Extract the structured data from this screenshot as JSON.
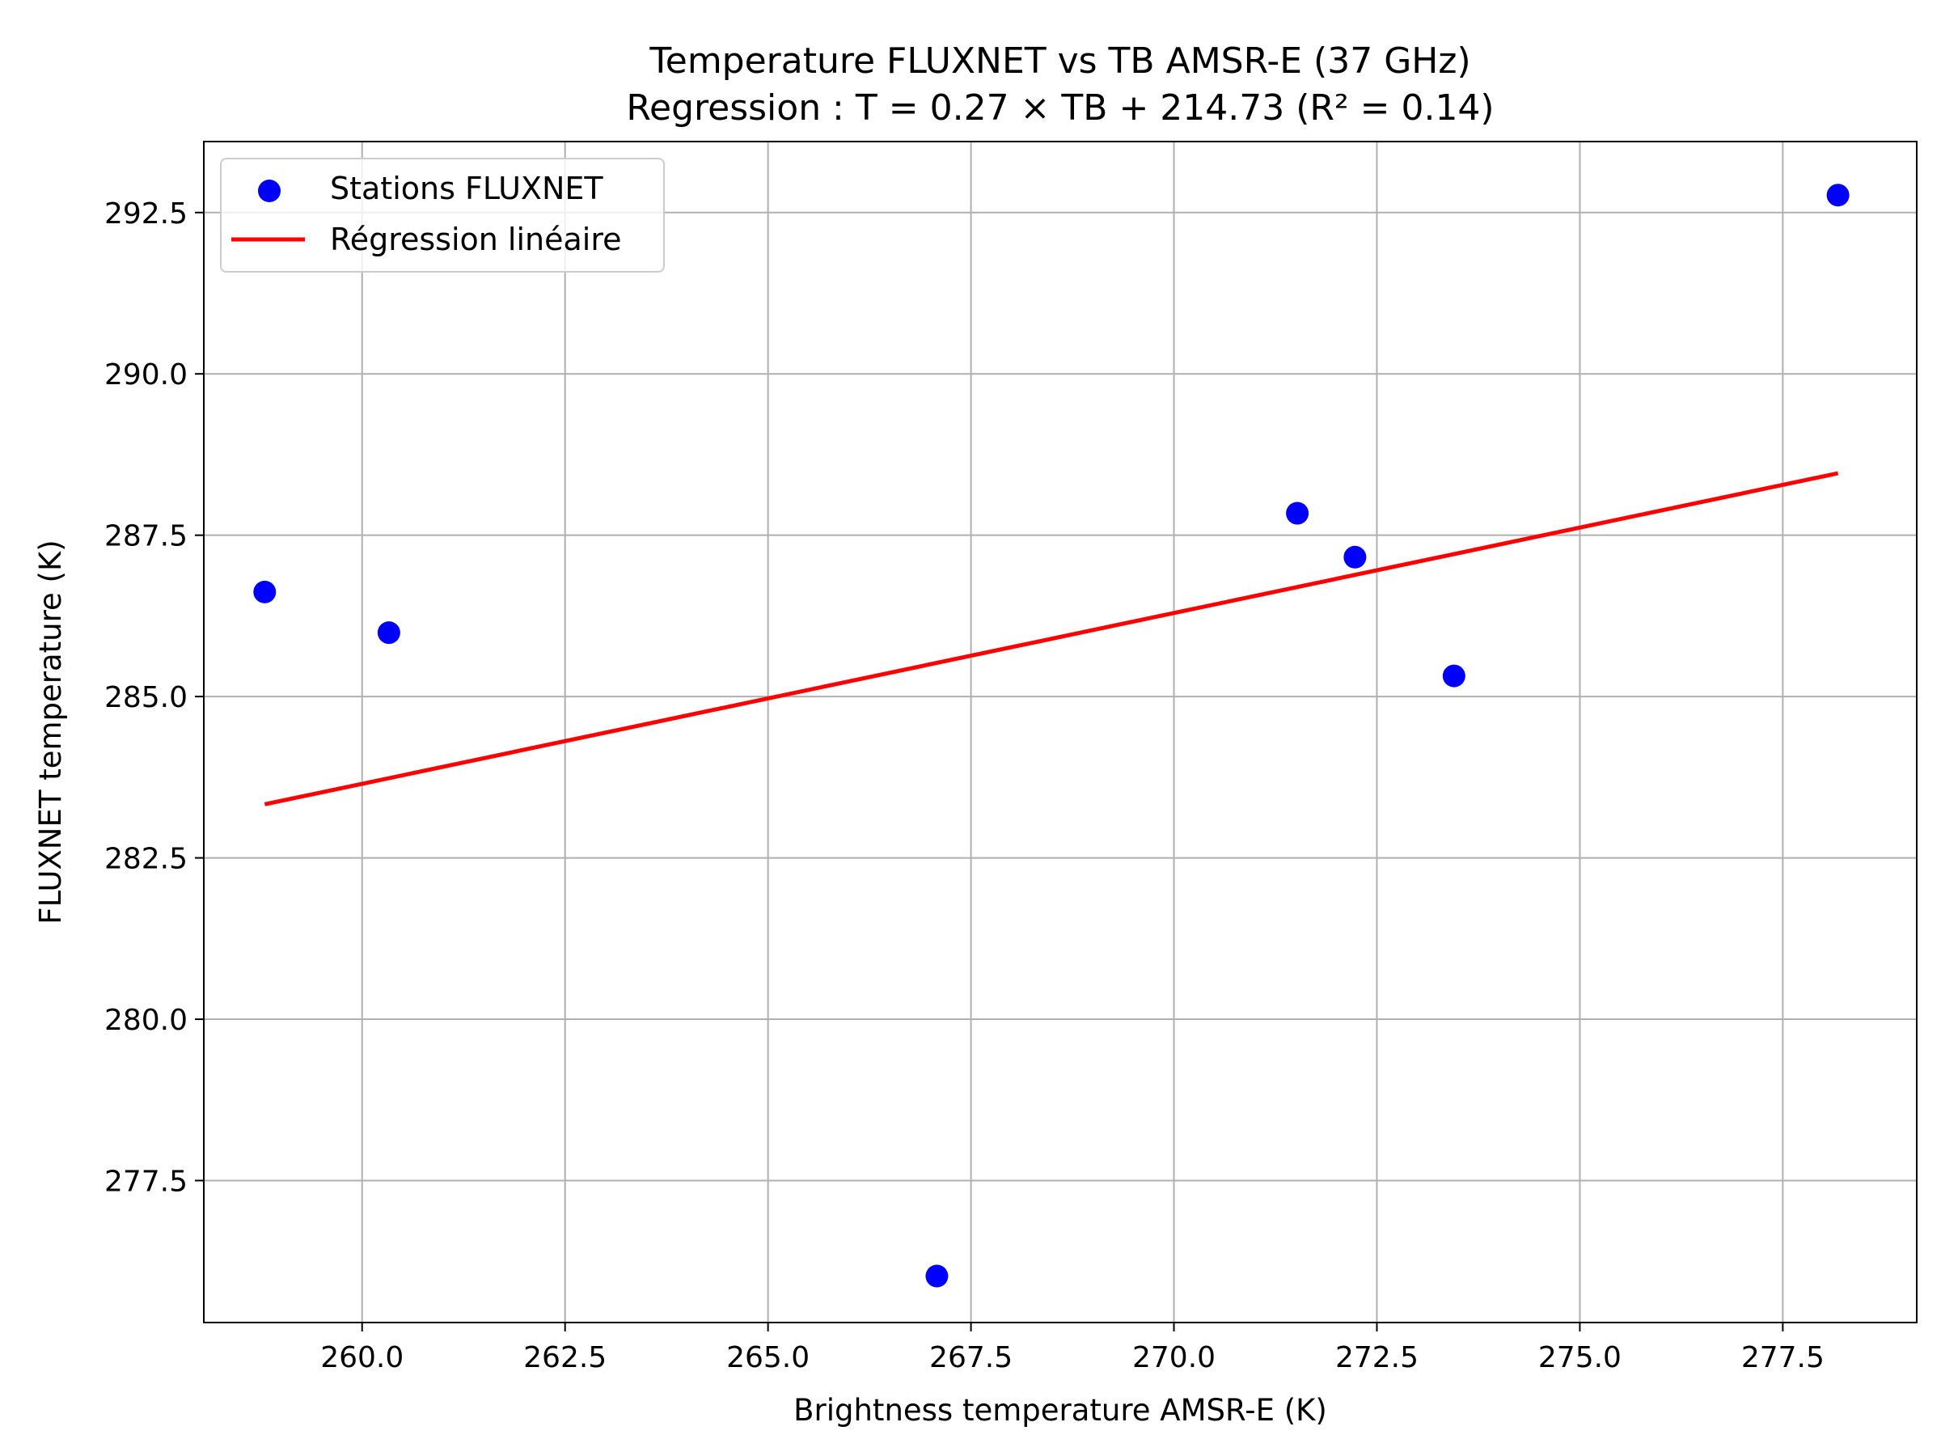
{
  "chart_data": {
    "type": "scatter",
    "title_line1": "Temperature FLUXNET vs TB AMSR-E (37 GHz)",
    "title_line2": "Regression : T = 0.27 × TB + 214.73 (R² = 0.14)",
    "xlabel": "Brightness temperature AMSR-E (K)",
    "ylabel": "FLUXNET temperature (K)",
    "xlim": [
      258.05,
      279.15
    ],
    "ylim": [
      275.3,
      293.6
    ],
    "xticks": [
      260.0,
      262.5,
      265.0,
      267.5,
      270.0,
      272.5,
      275.0,
      277.5
    ],
    "xtick_labels": [
      "260.0",
      "262.5",
      "265.0",
      "267.5",
      "270.0",
      "272.5",
      "275.0",
      "277.5"
    ],
    "yticks": [
      277.5,
      280.0,
      282.5,
      285.0,
      287.5,
      290.0,
      292.5
    ],
    "ytick_labels": [
      "277.5",
      "280.0",
      "282.5",
      "285.0",
      "287.5",
      "290.0",
      "292.5"
    ],
    "grid": true,
    "legend_position": "top-left",
    "series": [
      {
        "name": "Stations FLUXNET",
        "kind": "scatter",
        "color": "#0000ff",
        "points": [
          {
            "x": 258.8,
            "y": 286.62
          },
          {
            "x": 260.33,
            "y": 285.99
          },
          {
            "x": 267.08,
            "y": 276.02
          },
          {
            "x": 271.52,
            "y": 287.84
          },
          {
            "x": 272.23,
            "y": 287.16
          },
          {
            "x": 273.45,
            "y": 285.32
          },
          {
            "x": 278.18,
            "y": 292.77
          }
        ]
      },
      {
        "name": "Régression linéaire",
        "kind": "line",
        "color": "#ff0000",
        "points": [
          {
            "x": 258.8,
            "y": 283.33
          },
          {
            "x": 278.18,
            "y": 288.46
          }
        ]
      }
    ]
  }
}
